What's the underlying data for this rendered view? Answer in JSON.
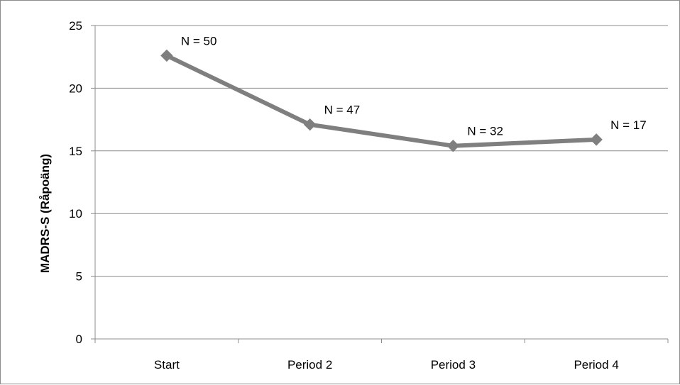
{
  "chart_data": {
    "type": "line",
    "categories": [
      "Start",
      "Period 2",
      "Period 3",
      "Period 4"
    ],
    "series": [
      {
        "values": [
          22.6,
          17.1,
          15.4,
          15.9
        ],
        "labels": [
          "N = 50",
          "N = 47",
          "N = 32",
          "N = 17"
        ],
        "color": "#7f7f7f"
      }
    ],
    "ylabel": "MADRS-S  (Råpoäng)",
    "xlabel": "",
    "ylim": [
      0,
      25
    ],
    "yticks": [
      "0",
      "5",
      "10",
      "15",
      "20",
      "25"
    ],
    "grid": true,
    "legend": "none",
    "colors": {
      "line": "#7f7f7f",
      "grid": "#8c8c8c",
      "axis": "#8c8c8c"
    }
  }
}
